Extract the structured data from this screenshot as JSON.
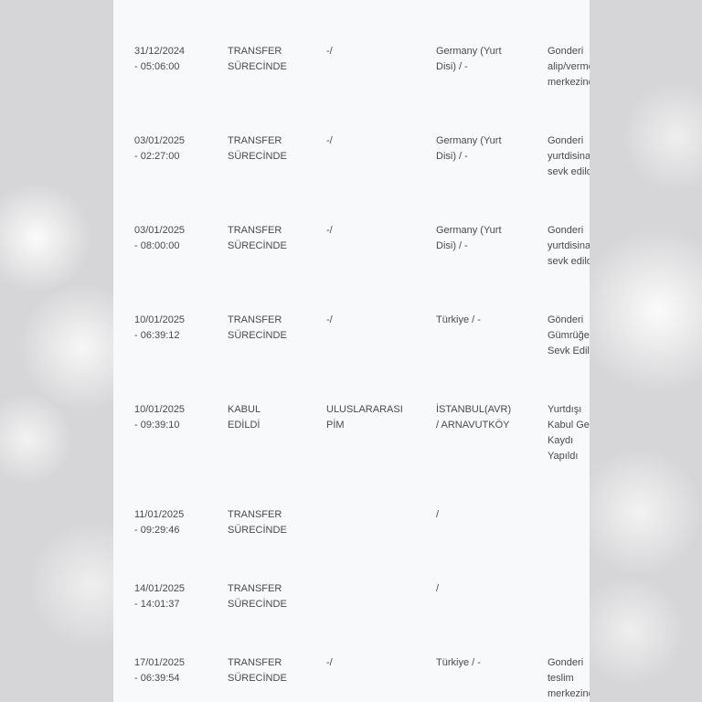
{
  "tracking_table": {
    "rows": [
      {
        "date": "31/12/2024\n- 05:06:00",
        "status": "TRANSFER\nSÜRECİNDE",
        "unit": "-/",
        "location": "Germany (Yurt\nDisi) / -",
        "description": "Gonderi\nalip/verme\nmerkezinde"
      },
      {
        "date": "03/01/2025\n- 02:27:00",
        "status": "TRANSFER\nSÜRECİNDE",
        "unit": "-/",
        "location": "Germany (Yurt\nDisi) / -",
        "description": "Gonderi\nyurtdisina\nsevk edildi"
      },
      {
        "date": "03/01/2025\n- 08:00:00",
        "status": "TRANSFER\nSÜRECİNDE",
        "unit": "-/",
        "location": "Germany (Yurt\nDisi) / -",
        "description": "Gonderi\nyurtdisina\nsevk edildi"
      },
      {
        "date": "10/01/2025\n- 06:39:12",
        "status": "TRANSFER\nSÜRECİNDE",
        "unit": "-/",
        "location": "Türkiye / -",
        "description": "Gönderi\nGümrüğe\nSevk Edildi"
      },
      {
        "date": "10/01/2025\n- 09:39:10",
        "status": "KABUL\nEDİLDİ",
        "unit": "ULUSLARARASI\nPİM",
        "location": "İSTANBUL(AVR)\n/ ARNAVUTKÖY",
        "description": "Yurtdışı\nKabul Geliş\nKaydı\nYapıldı"
      },
      {
        "date": "11/01/2025\n- 09:29:46",
        "status": "TRANSFER\nSÜRECİNDE",
        "unit": "",
        "location": "/",
        "description": ""
      },
      {
        "date": "14/01/2025\n- 14:01:37",
        "status": "TRANSFER\nSÜRECİNDE",
        "unit": "",
        "location": "/",
        "description": ""
      },
      {
        "date": "17/01/2025\n- 06:39:54",
        "status": "TRANSFER\nSÜRECİNDE",
        "unit": "-/",
        "location": "Türkiye / -",
        "description": "Gonderi\nteslim\nmerkezinde"
      }
    ]
  }
}
